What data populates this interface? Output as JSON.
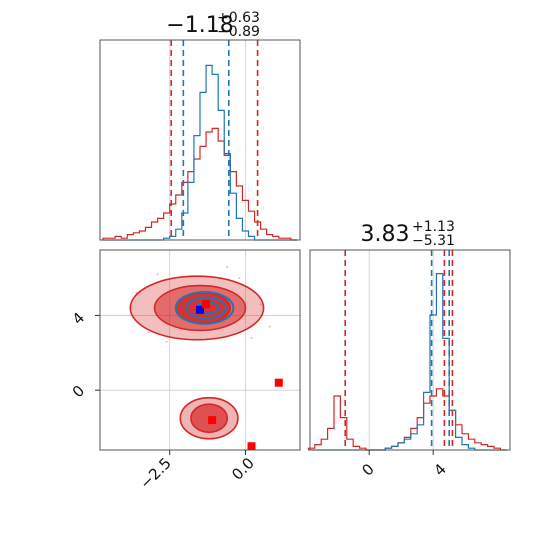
{
  "chart_data": {
    "type": "corner",
    "colors": {
      "series_a": "#1f77b4",
      "series_b": "#d62728"
    },
    "parameters": [
      {
        "title_main": "−1.18",
        "title_sup": "+0.63",
        "title_sub": "−0.89",
        "range": [
          -4.8,
          1.8
        ],
        "ticks": [
          -2.5,
          0.0
        ],
        "tick_labels": [
          "−2.5",
          "0.0"
        ]
      },
      {
        "title_main": "3.83",
        "title_sup": "+1.13",
        "title_sub": "−5.31",
        "range": [
          -3.7,
          8.8
        ],
        "ticks": [
          0,
          4
        ],
        "tick_labels": [
          "0",
          "4"
        ]
      }
    ],
    "panel_2d": {
      "x_range": [
        -4.8,
        1.8
      ],
      "y_range": [
        -3.2,
        7.5
      ],
      "y_ticks": [
        0,
        4
      ],
      "y_tick_labels": [
        "0",
        "4"
      ],
      "grid_x": [
        -2.5,
        0.0
      ],
      "grid_y": [
        0,
        4
      ],
      "markers": [
        {
          "series": "series_a",
          "x": -1.5,
          "y": 4.3
        },
        {
          "series": "series_b",
          "x": -1.3,
          "y": 4.6
        },
        {
          "series": "series_b",
          "x": -1.1,
          "y": -1.6
        },
        {
          "series": "series_b",
          "x": 1.1,
          "y": 0.4
        },
        {
          "series": "series_b",
          "x": 0.2,
          "y": -3.0
        }
      ],
      "red_contours_mode_upper": [
        {
          "cx": -1.6,
          "cy": 4.4,
          "rx": 2.2,
          "ry": 1.7,
          "fill": 0.3
        },
        {
          "cx": -1.5,
          "cy": 4.4,
          "rx": 1.5,
          "ry": 1.2,
          "fill": 0.55
        },
        {
          "cx": -1.4,
          "cy": 4.4,
          "rx": 0.9,
          "ry": 0.8,
          "fill": 0.85
        }
      ],
      "red_contours_mode_lower": [
        {
          "cx": -1.2,
          "cy": -1.5,
          "rx": 0.95,
          "ry": 1.1,
          "fill": 0.35
        },
        {
          "cx": -1.2,
          "cy": -1.5,
          "rx": 0.6,
          "ry": 0.75,
          "fill": 0.7
        }
      ],
      "blue_contours": [
        {
          "cx": -1.35,
          "cy": 4.4,
          "rx": 0.95,
          "ry": 0.85
        },
        {
          "cx": -1.3,
          "cy": 4.4,
          "rx": 0.65,
          "ry": 0.55
        },
        {
          "cx": -1.25,
          "cy": 4.4,
          "rx": 0.35,
          "ry": 0.3
        }
      ]
    },
    "hist_1": {
      "x": [
        -4.6,
        -4.4,
        -4.2,
        -4.0,
        -3.8,
        -3.6,
        -3.4,
        -3.2,
        -3.0,
        -2.8,
        -2.6,
        -2.4,
        -2.2,
        -2.0,
        -1.8,
        -1.6,
        -1.4,
        -1.2,
        -1.0,
        -0.8,
        -0.6,
        -0.4,
        -0.2,
        0.0,
        0.2,
        0.4,
        0.6,
        0.8,
        1.0,
        1.2,
        1.4,
        1.6
      ],
      "series_a": [
        0,
        0,
        0,
        0,
        0,
        0,
        0,
        0,
        0,
        0,
        0.01,
        0.02,
        0.06,
        0.15,
        0.32,
        0.58,
        0.82,
        0.97,
        0.92,
        0.72,
        0.48,
        0.26,
        0.12,
        0.05,
        0.02,
        0,
        0,
        0,
        0,
        0,
        0,
        0
      ],
      "series_b": [
        0.01,
        0.01,
        0.02,
        0.01,
        0.03,
        0.04,
        0.05,
        0.07,
        0.1,
        0.12,
        0.15,
        0.2,
        0.25,
        0.32,
        0.38,
        0.45,
        0.52,
        0.6,
        0.62,
        0.55,
        0.47,
        0.38,
        0.3,
        0.22,
        0.16,
        0.1,
        0.06,
        0.03,
        0.02,
        0.01,
        0.01,
        0.0
      ],
      "quantiles_a": [
        -2.05,
        -0.55
      ],
      "quantiles_b": [
        -2.45,
        0.4
      ]
    },
    "hist_2": {
      "x": [
        -3.6,
        -3.2,
        -2.8,
        -2.4,
        -2.0,
        -1.6,
        -1.2,
        -0.8,
        -0.4,
        0.0,
        0.4,
        0.8,
        1.2,
        1.6,
        2.0,
        2.4,
        2.8,
        3.2,
        3.6,
        4.0,
        4.4,
        4.8,
        5.2,
        5.6,
        6.0,
        6.4,
        6.8,
        7.2,
        7.6,
        8.0,
        8.4
      ],
      "series_a": [
        0,
        0,
        0,
        0,
        0,
        0,
        0,
        0,
        0,
        0,
        0,
        0,
        0.01,
        0.02,
        0.04,
        0.06,
        0.09,
        0.14,
        0.32,
        0.75,
        0.98,
        0.62,
        0.22,
        0.07,
        0.03,
        0.01,
        0,
        0,
        0,
        0,
        0
      ],
      "series_b": [
        0.01,
        0.03,
        0.06,
        0.12,
        0.3,
        0.18,
        0.06,
        0.02,
        0.01,
        0,
        0,
        0,
        0.01,
        0.02,
        0.04,
        0.07,
        0.12,
        0.18,
        0.26,
        0.3,
        0.34,
        0.3,
        0.22,
        0.14,
        0.09,
        0.06,
        0.04,
        0.03,
        0.02,
        0.01,
        0
      ],
      "quantiles_a": [
        3.9,
        5.0
      ],
      "quantiles_b": [
        -1.5,
        4.7,
        5.2
      ]
    }
  }
}
